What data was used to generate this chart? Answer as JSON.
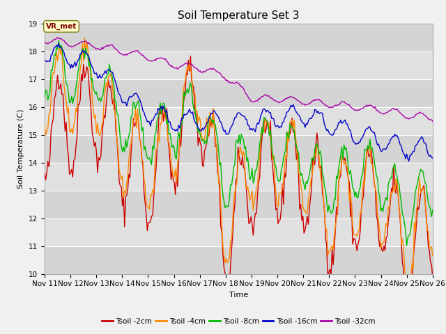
{
  "title": "Soil Temperature Set 3",
  "xlabel": "Time",
  "ylabel": "Soil Temperature (C)",
  "ylim": [
    10.0,
    19.0
  ],
  "yticks": [
    10.0,
    11.0,
    12.0,
    13.0,
    14.0,
    15.0,
    16.0,
    17.0,
    18.0,
    19.0
  ],
  "fig_facecolor": "#f0f0f0",
  "ax_facecolor": "#e8e8e8",
  "band_colors": [
    "#d4d4d4",
    "#e0e0e0"
  ],
  "legend_labels": [
    "Tsoil -2cm",
    "Tsoil -4cm",
    "Tsoil -8cm",
    "Tsoil -16cm",
    "Tsoil -32cm"
  ],
  "legend_colors": [
    "#cc0000",
    "#ff8800",
    "#00bb00",
    "#0000cc",
    "#aa00aa"
  ],
  "line_width": 1.0,
  "annotation_text": "VR_met",
  "x_tick_labels": [
    "Nov 11",
    "Nov 12",
    "Nov 13",
    "Nov 14",
    "Nov 15",
    "Nov 16",
    "Nov 17",
    "Nov 18",
    "Nov 19",
    "Nov 20",
    "Nov 21",
    "Nov 22",
    "Nov 23",
    "Nov 24",
    "Nov 25",
    "Nov 26"
  ],
  "title_fontsize": 11,
  "axis_label_fontsize": 8,
  "tick_fontsize": 7.5
}
